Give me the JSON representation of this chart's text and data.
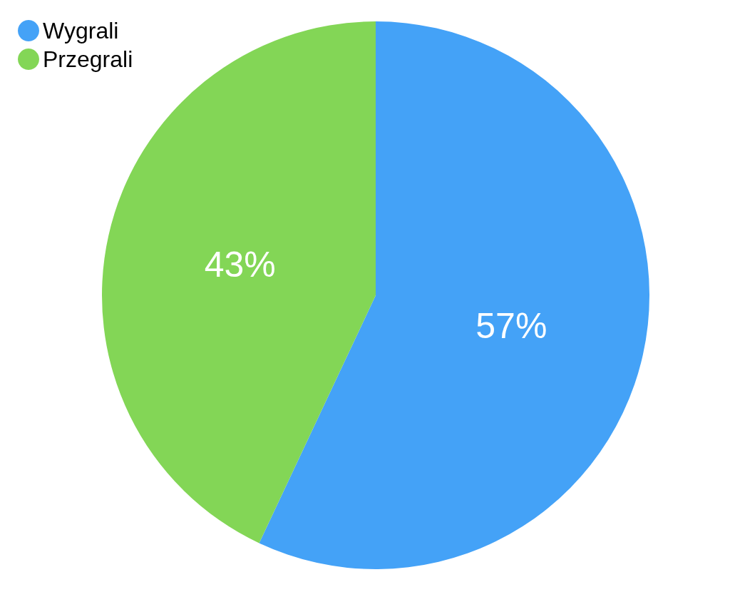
{
  "chart_data": {
    "type": "pie",
    "categories": [
      "Wygrali",
      "Przegrali"
    ],
    "values": [
      57,
      43
    ],
    "colors": [
      "#44a2f7",
      "#83d656"
    ],
    "value_labels": [
      "57%",
      "43%"
    ],
    "legend": "top left"
  }
}
